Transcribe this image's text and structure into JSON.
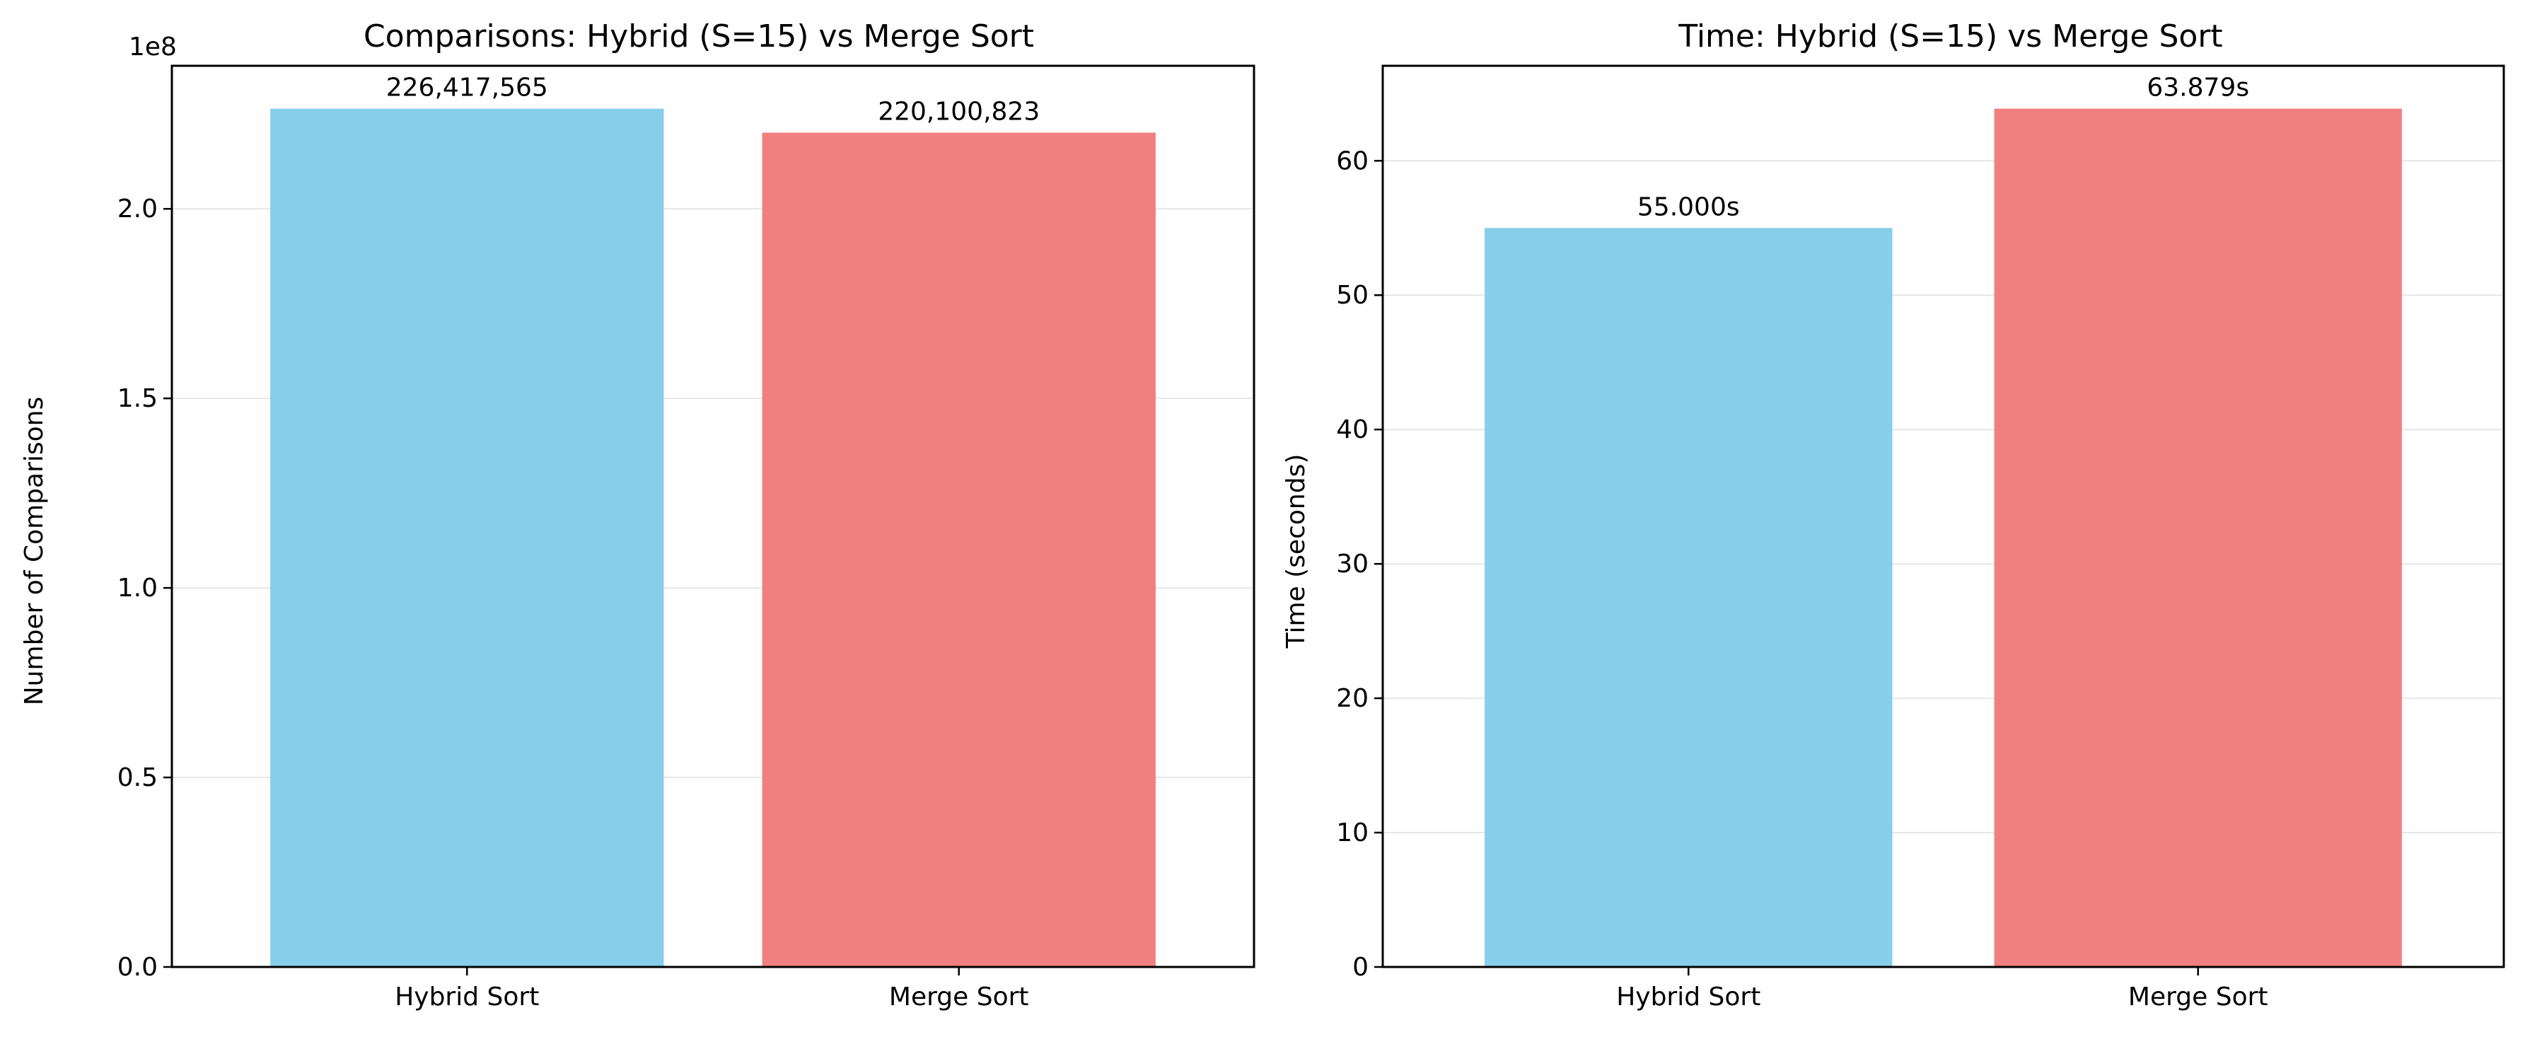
{
  "chart_data": [
    {
      "type": "bar",
      "title": "Comparisons: Hybrid (S=15) vs Merge Sort",
      "xlabel": "",
      "ylabel": "Number of Comparisons",
      "categories": [
        "Hybrid Sort",
        "Merge Sort"
      ],
      "values": [
        226417565,
        220100823
      ],
      "value_labels": [
        "226,417,565",
        "220,100,823"
      ],
      "colors": [
        "#87CEEB",
        "#F08080"
      ],
      "ylim": [
        0,
        237738443
      ],
      "yticks": [
        0,
        50000000,
        100000000,
        150000000,
        200000000
      ],
      "ytick_labels": [
        "0.0",
        "0.5",
        "1.0",
        "1.5",
        "2.0"
      ],
      "y_offset_label": "1e8",
      "grid": "y"
    },
    {
      "type": "bar",
      "title": "Time: Hybrid (S=15) vs Merge Sort",
      "xlabel": "",
      "ylabel": "Time (seconds)",
      "categories": [
        "Hybrid Sort",
        "Merge Sort"
      ],
      "values": [
        55.0,
        63.879
      ],
      "value_labels": [
        "55.000s",
        "63.879s"
      ],
      "colors": [
        "#87CEEB",
        "#F08080"
      ],
      "ylim": [
        0,
        67.07
      ],
      "yticks": [
        0,
        10,
        20,
        30,
        40,
        50,
        60
      ],
      "ytick_labels": [
        "0",
        "10",
        "20",
        "30",
        "40",
        "50",
        "60"
      ],
      "grid": "y"
    }
  ]
}
